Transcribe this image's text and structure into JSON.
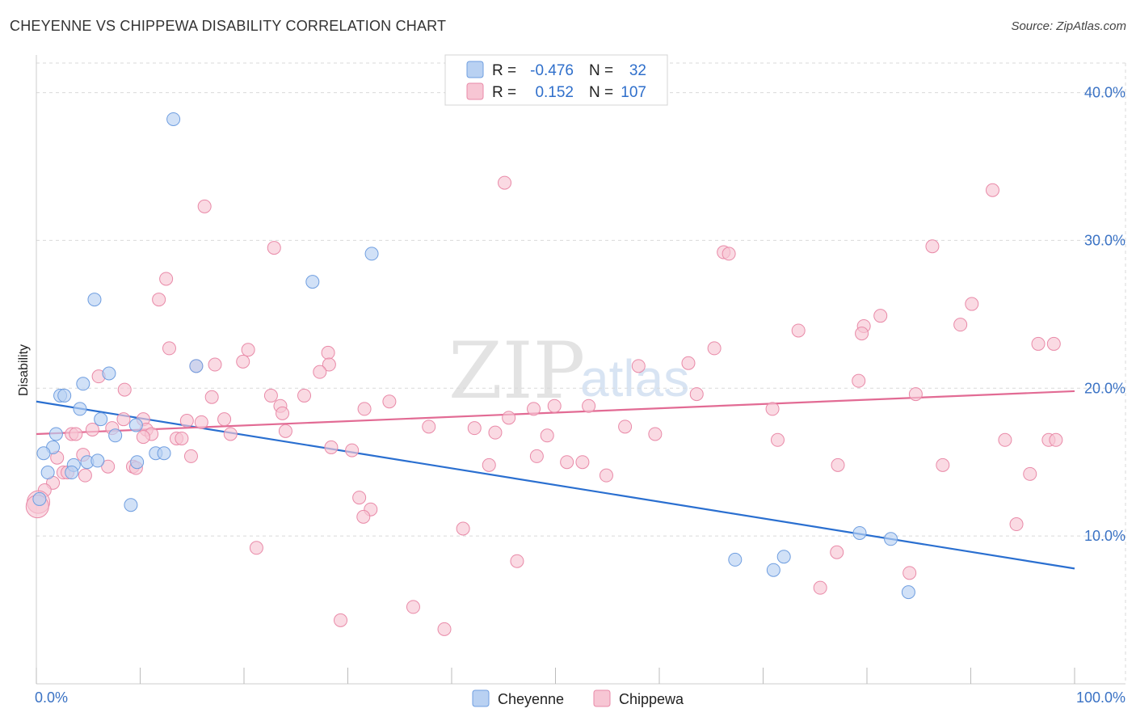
{
  "header": {
    "title": "CHEYENNE VS CHIPPEWA DISABILITY CORRELATION CHART",
    "source": "Source: ZipAtlas.com"
  },
  "watermark": {
    "zip": "ZIP",
    "atlas": "atlas"
  },
  "legend": {
    "r_label": "R =",
    "n_label": "N =",
    "rows": [
      {
        "name": "Cheyenne",
        "r": "-0.476",
        "n": "32"
      },
      {
        "name": "Chippewa",
        "r": "0.152",
        "n": "107"
      }
    ]
  },
  "colors": {
    "cheyenne_fill": "#b9d1f2",
    "cheyenne_stroke": "#6f9ee0",
    "cheyenne_line": "#2a6fd0",
    "chippewa_fill": "#f7c6d4",
    "chippewa_stroke": "#e98aa8",
    "chippewa_line": "#e26b94",
    "grid": "#d9d9d9",
    "axis_label": "#3a72c4"
  },
  "chart_data": {
    "type": "scatter",
    "title": "CHEYENNE VS CHIPPEWA DISABILITY CORRELATION CHART",
    "xlabel": "",
    "ylabel": "Disability",
    "xlim": [
      0,
      100
    ],
    "ylim": [
      0,
      42
    ],
    "x_tick_labels": [
      "0.0%",
      "100.0%"
    ],
    "y_ticks": [
      10,
      20,
      30,
      40
    ],
    "y_tick_labels": [
      "10.0%",
      "20.0%",
      "30.0%",
      "40.0%"
    ],
    "grid": true,
    "legend_position": "top-center",
    "series": [
      {
        "name": "Cheyenne",
        "r": -0.476,
        "n": 32,
        "trend": {
          "x": [
            0,
            100
          ],
          "y": [
            19.1,
            7.8
          ]
        },
        "points": [
          [
            13.2,
            38.2
          ],
          [
            32.3,
            29.1
          ],
          [
            26.6,
            27.2
          ],
          [
            5.6,
            26.0
          ],
          [
            15.4,
            21.5
          ],
          [
            7.0,
            21.0
          ],
          [
            2.3,
            19.5
          ],
          [
            2.7,
            19.5
          ],
          [
            4.5,
            20.3
          ],
          [
            4.2,
            18.6
          ],
          [
            6.2,
            17.9
          ],
          [
            9.6,
            17.5
          ],
          [
            1.9,
            16.9
          ],
          [
            7.6,
            16.8
          ],
          [
            1.6,
            16.0
          ],
          [
            0.7,
            15.6
          ],
          [
            11.5,
            15.6
          ],
          [
            12.3,
            15.6
          ],
          [
            3.6,
            14.8
          ],
          [
            4.9,
            15.0
          ],
          [
            5.9,
            15.1
          ],
          [
            9.7,
            15.0
          ],
          [
            1.1,
            14.3
          ],
          [
            3.4,
            14.3
          ],
          [
            9.1,
            12.1
          ],
          [
            0.3,
            12.5
          ],
          [
            79.3,
            10.2
          ],
          [
            82.3,
            9.8
          ],
          [
            67.3,
            8.4
          ],
          [
            72.0,
            8.6
          ],
          [
            71.0,
            7.7
          ],
          [
            84.0,
            6.2
          ]
        ]
      },
      {
        "name": "Chippewa",
        "r": 0.152,
        "n": 107,
        "trend": {
          "x": [
            0,
            100
          ],
          "y": [
            16.9,
            19.8
          ]
        },
        "points": [
          [
            45.1,
            33.9
          ],
          [
            16.2,
            32.3
          ],
          [
            92.1,
            33.4
          ],
          [
            22.9,
            29.5
          ],
          [
            66.2,
            29.2
          ],
          [
            66.7,
            29.1
          ],
          [
            86.3,
            29.6
          ],
          [
            12.5,
            27.4
          ],
          [
            11.8,
            26.0
          ],
          [
            90.1,
            25.7
          ],
          [
            81.3,
            24.9
          ],
          [
            89.0,
            24.3
          ],
          [
            79.7,
            24.2
          ],
          [
            79.5,
            23.7
          ],
          [
            73.4,
            23.9
          ],
          [
            96.5,
            23.0
          ],
          [
            98.0,
            23.0
          ],
          [
            12.8,
            22.7
          ],
          [
            20.4,
            22.6
          ],
          [
            65.3,
            22.7
          ],
          [
            28.1,
            22.4
          ],
          [
            19.9,
            21.8
          ],
          [
            15.4,
            21.5
          ],
          [
            17.2,
            21.6
          ],
          [
            28.2,
            21.6
          ],
          [
            58.0,
            21.5
          ],
          [
            62.8,
            21.7
          ],
          [
            27.3,
            21.1
          ],
          [
            8.5,
            19.9
          ],
          [
            6.0,
            20.8
          ],
          [
            79.2,
            20.5
          ],
          [
            22.6,
            19.5
          ],
          [
            16.9,
            19.4
          ],
          [
            25.8,
            19.5
          ],
          [
            63.6,
            19.6
          ],
          [
            84.7,
            19.6
          ],
          [
            34.0,
            19.1
          ],
          [
            23.5,
            18.8
          ],
          [
            31.6,
            18.6
          ],
          [
            23.7,
            18.3
          ],
          [
            47.9,
            18.6
          ],
          [
            53.2,
            18.8
          ],
          [
            49.9,
            18.8
          ],
          [
            70.9,
            18.6
          ],
          [
            8.4,
            17.9
          ],
          [
            10.3,
            17.9
          ],
          [
            18.1,
            17.9
          ],
          [
            45.5,
            18.0
          ],
          [
            14.5,
            17.8
          ],
          [
            15.9,
            17.7
          ],
          [
            7.3,
            17.3
          ],
          [
            5.4,
            17.2
          ],
          [
            10.6,
            17.2
          ],
          [
            37.8,
            17.4
          ],
          [
            42.2,
            17.3
          ],
          [
            56.7,
            17.4
          ],
          [
            24.0,
            17.1
          ],
          [
            3.4,
            16.9
          ],
          [
            3.8,
            16.9
          ],
          [
            11.1,
            16.9
          ],
          [
            10.3,
            16.7
          ],
          [
            18.7,
            16.9
          ],
          [
            44.2,
            17.0
          ],
          [
            49.2,
            16.8
          ],
          [
            59.6,
            16.9
          ],
          [
            13.5,
            16.6
          ],
          [
            14.0,
            16.6
          ],
          [
            71.4,
            16.5
          ],
          [
            93.3,
            16.5
          ],
          [
            97.5,
            16.5
          ],
          [
            98.2,
            16.5
          ],
          [
            28.4,
            16.0
          ],
          [
            30.4,
            15.8
          ],
          [
            14.9,
            15.4
          ],
          [
            48.2,
            15.4
          ],
          [
            2.0,
            15.3
          ],
          [
            4.5,
            15.5
          ],
          [
            51.1,
            15.0
          ],
          [
            52.6,
            15.0
          ],
          [
            43.6,
            14.8
          ],
          [
            77.2,
            14.8
          ],
          [
            87.3,
            14.8
          ],
          [
            6.9,
            14.7
          ],
          [
            9.3,
            14.7
          ],
          [
            2.6,
            14.3
          ],
          [
            3.0,
            14.3
          ],
          [
            4.7,
            14.1
          ],
          [
            9.6,
            14.6
          ],
          [
            54.9,
            14.1
          ],
          [
            95.7,
            14.2
          ],
          [
            1.6,
            13.6
          ],
          [
            0.8,
            13.1
          ],
          [
            0.2,
            12.3
          ],
          [
            31.1,
            12.6
          ],
          [
            32.2,
            11.8
          ],
          [
            31.5,
            11.3
          ],
          [
            41.1,
            10.5
          ],
          [
            94.4,
            10.8
          ],
          [
            21.2,
            9.2
          ],
          [
            77.1,
            8.9
          ],
          [
            46.3,
            8.3
          ],
          [
            84.1,
            7.5
          ],
          [
            75.5,
            6.5
          ],
          [
            36.3,
            5.2
          ],
          [
            29.3,
            4.3
          ],
          [
            39.3,
            3.7
          ],
          [
            0.1,
            12.0
          ]
        ]
      }
    ]
  }
}
